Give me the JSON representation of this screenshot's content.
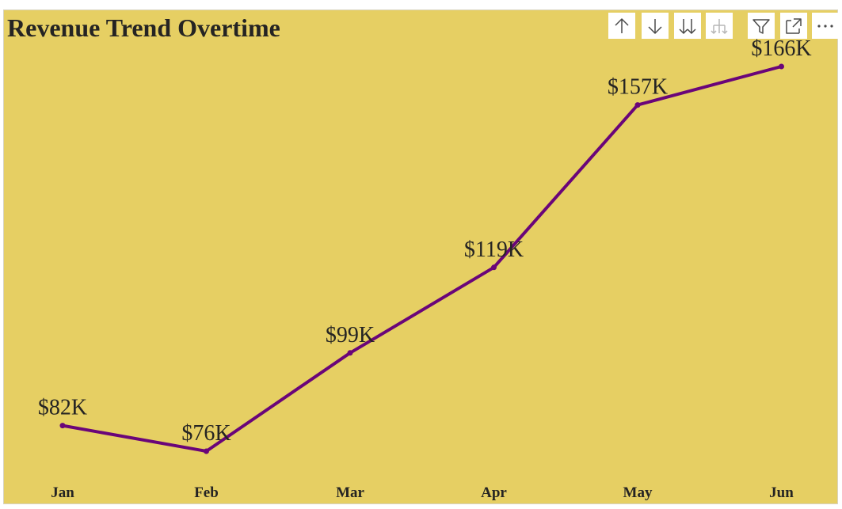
{
  "colors": {
    "background": "#e6cf63",
    "line": "#6a0579",
    "text": "#252423",
    "toolbar_bg": "#ffffff",
    "icon": "#4a4a4a",
    "icon_disabled": "#b7b7b7"
  },
  "toolbar": {
    "buttons": [
      {
        "icon": "arrow-up-icon",
        "name": "drill-up-button"
      },
      {
        "icon": "arrow-down-icon",
        "name": "drill-down-button"
      },
      {
        "icon": "double-arrow-down-icon",
        "name": "expand-next-level-button"
      },
      {
        "icon": "hierarchy-icon",
        "name": "expand-hierarchy-button",
        "disabled": true
      },
      {
        "icon": "filter-icon",
        "name": "filter-button"
      },
      {
        "icon": "focus-mode-icon",
        "name": "focus-mode-button"
      },
      {
        "icon": "more-options-icon",
        "name": "more-options-button"
      }
    ]
  },
  "chart_data": {
    "type": "line",
    "title": "Revenue Trend Overtime",
    "categories": [
      "Jan",
      "Feb",
      "Mar",
      "Apr",
      "May",
      "Jun"
    ],
    "series": [
      {
        "values": [
          82,
          76,
          99,
          119,
          157,
          166
        ],
        "labels": [
          "$82K",
          "$76K",
          "$99K",
          "$119K",
          "$157K",
          "$166K"
        ]
      }
    ],
    "xlabel": "",
    "ylabel": "",
    "ylim": [
      76,
      166
    ],
    "grid": false,
    "legend": "none",
    "markers": true
  }
}
